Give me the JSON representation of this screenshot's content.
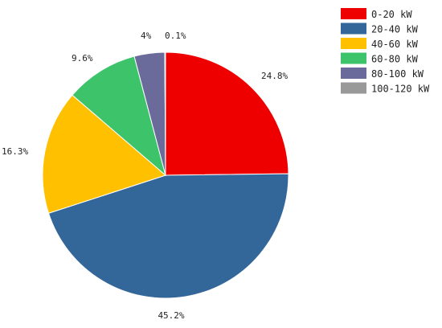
{
  "chart_data": {
    "type": "pie",
    "title": "",
    "legend_position": "top-right",
    "slices": [
      {
        "label": "0-20 kW",
        "value": 24.8,
        "value_label": "24.8%",
        "color": "#ee0000"
      },
      {
        "label": "20-40 kW",
        "value": 45.2,
        "value_label": "45.2%",
        "color": "#336699"
      },
      {
        "label": "40-60 kW",
        "value": 16.3,
        "value_label": "16.3%",
        "color": "#ffc000"
      },
      {
        "label": "60-80 kW",
        "value": 9.6,
        "value_label": "9.6%",
        "color": "#3dc46a"
      },
      {
        "label": "80-100 kW",
        "value": 4.0,
        "value_label": "4%",
        "color": "#6b6b9b"
      },
      {
        "label": "100-120 kW",
        "value": 0.1,
        "value_label": "0.1%",
        "color": "#999999"
      }
    ]
  }
}
